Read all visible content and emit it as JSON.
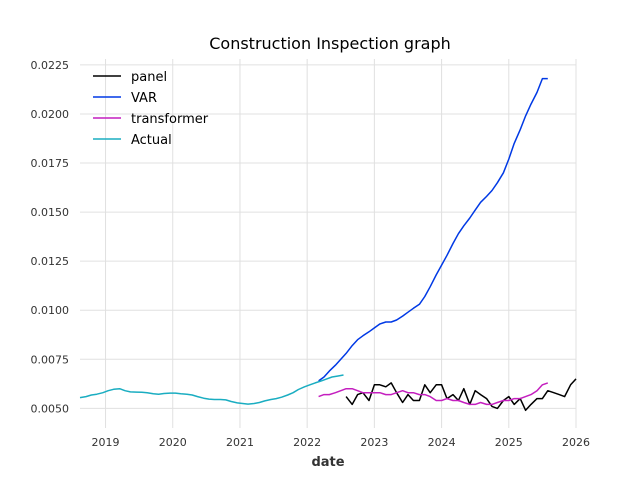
{
  "chart_data": {
    "type": "line",
    "title": "Construction Inspection graph",
    "xlabel": "date",
    "ylabel": "",
    "xlim": [
      2018.62,
      2026.0
    ],
    "ylim": [
      0.004,
      0.0228
    ],
    "x_ticks": [
      2019,
      2020,
      2021,
      2022,
      2023,
      2024,
      2025,
      2026
    ],
    "x_tick_labels": [
      "2019",
      "2020",
      "2021",
      "2022",
      "2023",
      "2024",
      "2025",
      "2026"
    ],
    "y_ticks": [
      0.005,
      0.0075,
      0.01,
      0.0125,
      0.015,
      0.0175,
      0.02,
      0.0225
    ],
    "y_tick_labels": [
      "0.0050",
      "0.0075",
      "0.0100",
      "0.0125",
      "0.0150",
      "0.0175",
      "0.0200",
      "0.0225"
    ],
    "grid": true,
    "legend_position": "top-left",
    "series": [
      {
        "name": "panel",
        "color": "#000000",
        "x": [
          2022.58,
          2022.67,
          2022.75,
          2022.83,
          2022.92,
          2023.0,
          2023.08,
          2023.17,
          2023.25,
          2023.33,
          2023.42,
          2023.5,
          2023.58,
          2023.67,
          2023.75,
          2023.83,
          2023.92,
          2024.0,
          2024.08,
          2024.17,
          2024.25,
          2024.33,
          2024.42,
          2024.5,
          2024.58,
          2024.67,
          2024.75,
          2024.83,
          2024.92,
          2025.0,
          2025.08,
          2025.17,
          2025.25,
          2025.33,
          2025.42,
          2025.5,
          2025.58,
          2025.67,
          2025.75,
          2025.83,
          2025.92,
          2026.0
        ],
        "y": [
          0.0056,
          0.0052,
          0.0057,
          0.0058,
          0.0054,
          0.0062,
          0.0062,
          0.0061,
          0.0063,
          0.0058,
          0.0053,
          0.0057,
          0.0054,
          0.0054,
          0.0062,
          0.0058,
          0.0062,
          0.0062,
          0.0055,
          0.0057,
          0.0054,
          0.006,
          0.0052,
          0.0059,
          0.0057,
          0.0055,
          0.0051,
          0.005,
          0.0054,
          0.0056,
          0.0052,
          0.0055,
          0.0049,
          0.0052,
          0.0055,
          0.0055,
          0.0059,
          0.0058,
          0.0057,
          0.0056,
          0.0062,
          0.0065
        ]
      },
      {
        "name": "VAR",
        "color": "#0039e5",
        "x": [
          2022.17,
          2022.25,
          2022.33,
          2022.42,
          2022.5,
          2022.58,
          2022.67,
          2022.75,
          2022.83,
          2022.92,
          2023.0,
          2023.08,
          2023.17,
          2023.25,
          2023.33,
          2023.42,
          2023.5,
          2023.58,
          2023.67,
          2023.75,
          2023.83,
          2023.92,
          2024.0,
          2024.08,
          2024.17,
          2024.25,
          2024.33,
          2024.42,
          2024.5,
          2024.58,
          2024.67,
          2024.75,
          2024.83,
          2024.92,
          2025.0,
          2025.08,
          2025.17,
          2025.25,
          2025.33,
          2025.42,
          2025.5,
          2025.58
        ],
        "y": [
          0.0064,
          0.0066,
          0.0069,
          0.0072,
          0.0075,
          0.0078,
          0.0082,
          0.0085,
          0.0087,
          0.0089,
          0.0091,
          0.0093,
          0.0094,
          0.0094,
          0.0095,
          0.0097,
          0.0099,
          0.0101,
          0.0103,
          0.0107,
          0.0112,
          0.0118,
          0.0123,
          0.0128,
          0.0134,
          0.0139,
          0.0143,
          0.0147,
          0.0151,
          0.0155,
          0.0158,
          0.0161,
          0.0165,
          0.017,
          0.0177,
          0.0185,
          0.0192,
          0.0199,
          0.0205,
          0.0211,
          0.0218,
          0.0218
        ]
      },
      {
        "name": "transformer",
        "color": "#c41fbf",
        "x": [
          2022.17,
          2022.25,
          2022.33,
          2022.42,
          2022.5,
          2022.58,
          2022.67,
          2022.75,
          2022.83,
          2022.92,
          2023.0,
          2023.08,
          2023.17,
          2023.25,
          2023.33,
          2023.42,
          2023.5,
          2023.58,
          2023.67,
          2023.75,
          2023.83,
          2023.92,
          2024.0,
          2024.08,
          2024.17,
          2024.25,
          2024.33,
          2024.42,
          2024.5,
          2024.58,
          2024.67,
          2024.75,
          2024.83,
          2024.92,
          2025.0,
          2025.08,
          2025.17,
          2025.25,
          2025.33,
          2025.42,
          2025.5,
          2025.58
        ],
        "y": [
          0.0056,
          0.0057,
          0.0057,
          0.0058,
          0.0059,
          0.006,
          0.006,
          0.0059,
          0.0058,
          0.0058,
          0.0058,
          0.0058,
          0.0057,
          0.0057,
          0.0058,
          0.0059,
          0.0058,
          0.0058,
          0.0057,
          0.0057,
          0.0056,
          0.0054,
          0.0054,
          0.0055,
          0.0054,
          0.0054,
          0.0053,
          0.0052,
          0.0052,
          0.0053,
          0.0052,
          0.0052,
          0.0053,
          0.0054,
          0.0054,
          0.0055,
          0.0055,
          0.0056,
          0.0057,
          0.0059,
          0.0062,
          0.0063
        ]
      },
      {
        "name": "Actual",
        "color": "#1aadc1",
        "x": [
          2018.62,
          2018.71,
          2018.79,
          2018.87,
          2018.96,
          2019.04,
          2019.12,
          2019.21,
          2019.29,
          2019.37,
          2019.46,
          2019.54,
          2019.62,
          2019.71,
          2019.79,
          2019.87,
          2019.96,
          2020.04,
          2020.12,
          2020.21,
          2020.29,
          2020.37,
          2020.46,
          2020.54,
          2020.62,
          2020.71,
          2020.79,
          2020.87,
          2020.96,
          2021.04,
          2021.12,
          2021.21,
          2021.29,
          2021.37,
          2021.46,
          2021.54,
          2021.62,
          2021.71,
          2021.79,
          2021.87,
          2021.96,
          2022.04,
          2022.12,
          2022.21,
          2022.29,
          2022.37,
          2022.46,
          2022.54
        ],
        "y": [
          0.00555,
          0.0056,
          0.00568,
          0.00572,
          0.0058,
          0.0059,
          0.00597,
          0.006,
          0.0059,
          0.00584,
          0.00583,
          0.00582,
          0.0058,
          0.00574,
          0.00572,
          0.00576,
          0.00578,
          0.00578,
          0.00575,
          0.00572,
          0.00568,
          0.0056,
          0.00552,
          0.00547,
          0.00545,
          0.00545,
          0.00543,
          0.00535,
          0.00528,
          0.00525,
          0.00522,
          0.00525,
          0.0053,
          0.00538,
          0.00545,
          0.0055,
          0.00557,
          0.00568,
          0.0058,
          0.00596,
          0.0061,
          0.0062,
          0.0063,
          0.0064,
          0.0065,
          0.0066,
          0.00665,
          0.0067
        ]
      }
    ]
  }
}
